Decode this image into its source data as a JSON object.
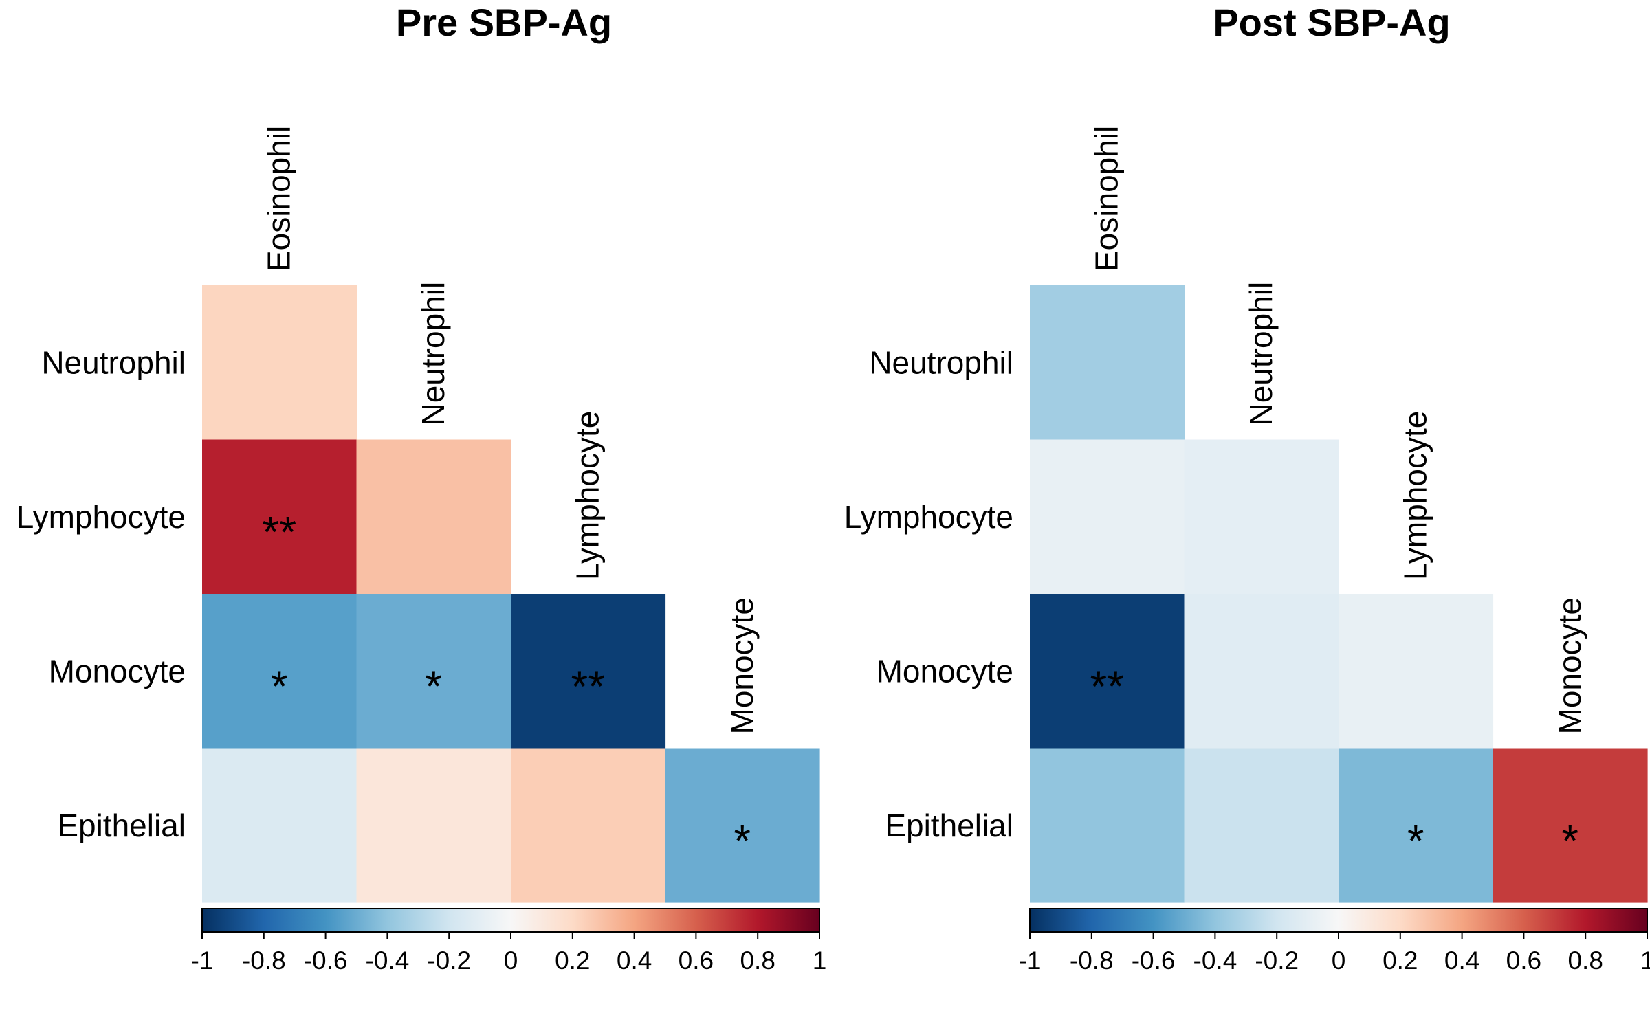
{
  "chart_data": [
    {
      "type": "heatmap",
      "title": "Pre SBP-Ag",
      "rows": [
        "Neutrophil",
        "Lymphocyte",
        "Monocyte",
        "Epithelial"
      ],
      "columns": [
        "Eosinophil",
        "Neutrophil",
        "Lymphocyte",
        "Monocyte"
      ],
      "layout": "lower-triangle",
      "values": [
        [
          0.22
        ],
        [
          0.78,
          0.3
        ],
        [
          -0.55,
          -0.5,
          -0.95
        ],
        [
          -0.15,
          0.12,
          0.25,
          -0.5
        ]
      ],
      "significance": [
        [
          ""
        ],
        [
          "**",
          ""
        ],
        [
          "*",
          "*",
          "**"
        ],
        [
          "",
          "",
          "",
          "*"
        ]
      ],
      "color_scale": {
        "range": [
          -1,
          1
        ],
        "ticks": [
          "-1",
          "-0.8",
          "-0.6",
          "-0.4",
          "-0.2",
          "0",
          "0.2",
          "0.4",
          "0.6",
          "0.8",
          "1"
        ],
        "colors": [
          "#053061",
          "#2166ac",
          "#4393c3",
          "#92c5de",
          "#d1e5f0",
          "#f7f7f7",
          "#fddbc7",
          "#f4a582",
          "#d6604d",
          "#b2182b",
          "#67001f"
        ],
        "placement": "bottom"
      }
    },
    {
      "type": "heatmap",
      "title": "Post SBP-Ag",
      "rows": [
        "Neutrophil",
        "Lymphocyte",
        "Monocyte",
        "Epithelial"
      ],
      "columns": [
        "Eosinophil",
        "Neutrophil",
        "Lymphocyte",
        "Monocyte"
      ],
      "layout": "lower-triangle",
      "values": [
        [
          -0.35
        ],
        [
          -0.08,
          -0.1
        ],
        [
          -0.95,
          -0.12,
          -0.08
        ],
        [
          -0.4,
          -0.22,
          -0.45,
          0.7
        ]
      ],
      "significance": [
        [
          ""
        ],
        [
          "",
          ""
        ],
        [
          "**",
          "",
          ""
        ],
        [
          "",
          "",
          "*",
          "*"
        ]
      ],
      "color_scale": {
        "range": [
          -1,
          1
        ],
        "ticks": [
          "-1",
          "-0.8",
          "-0.6",
          "-0.4",
          "-0.2",
          "0",
          "0.2",
          "0.4",
          "0.6",
          "0.8",
          "1"
        ],
        "colors": [
          "#053061",
          "#2166ac",
          "#4393c3",
          "#92c5de",
          "#d1e5f0",
          "#f7f7f7",
          "#fddbc7",
          "#f4a582",
          "#d6604d",
          "#b2182b",
          "#67001f"
        ],
        "placement": "bottom"
      }
    }
  ]
}
